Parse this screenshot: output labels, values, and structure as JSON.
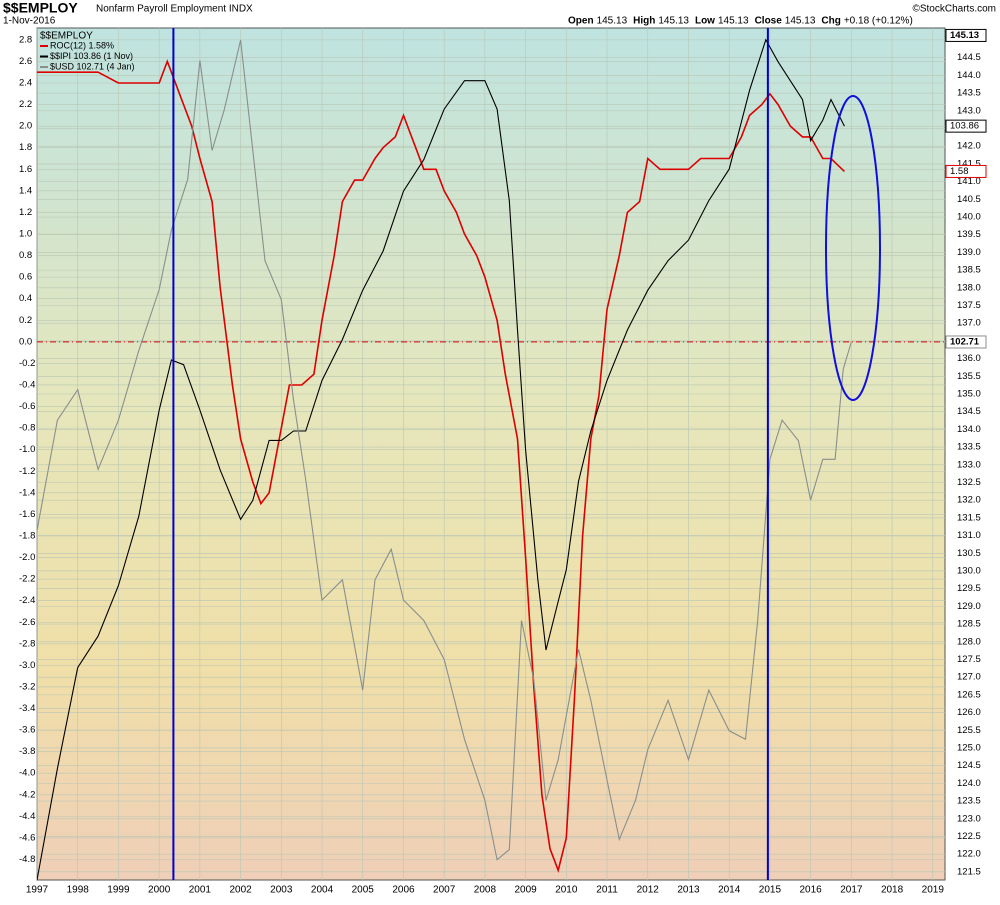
{
  "chart_data": {
    "type": "line",
    "title": "$$EMPLOY",
    "subtitle": "Nonfarm Payroll Employment INDX",
    "date": "1-Nov-2016",
    "credit": "©StockCharts.com",
    "stats": [
      {
        "name": "Open",
        "value": 145.13
      },
      {
        "name": "High",
        "value": 145.13
      },
      {
        "name": "Low",
        "value": 145.13
      },
      {
        "name": "Close",
        "value": 145.13
      },
      {
        "name": "Chg",
        "value": "+0.18 (+0.12%)"
      }
    ],
    "legend_title": "$$EMPLOY",
    "xlim": [
      1997,
      2019.3
    ],
    "xticks": [
      1997,
      1998,
      1999,
      2000,
      2001,
      2002,
      2003,
      2004,
      2005,
      2006,
      2007,
      2008,
      2009,
      2010,
      2011,
      2012,
      2013,
      2014,
      2015,
      2016,
      2017,
      2018,
      2019
    ],
    "ylim": [
      -4.99,
      2.91
    ],
    "yticks": [
      2.8,
      2.6,
      2.4,
      2.2,
      {
        "value": 2,
        "label": "2.0"
      },
      1.8,
      1.6,
      1.4,
      1.2,
      {
        "value": 1,
        "label": "1.0"
      },
      0.8,
      0.6,
      0.4,
      0.2,
      {
        "value": 0,
        "label": "0.0"
      },
      -0.2,
      -0.4,
      -0.6,
      -0.8,
      {
        "value": -1,
        "label": "-1.0"
      },
      -1.2,
      -1.4,
      -1.6,
      -1.8,
      {
        "value": -2,
        "label": "-2.0"
      },
      -2.2,
      -2.4,
      -2.6,
      -2.8,
      {
        "value": -3,
        "label": "-3.0"
      },
      -3.2,
      -3.4,
      -3.6,
      -3.8,
      {
        "value": -4,
        "label": "-4.0"
      },
      -4.2,
      -4.4,
      -4.6,
      -4.8
    ],
    "y2lim": [
      121.27,
      145.34
    ],
    "y2ticks": [
      121.5,
      {
        "value": 122,
        "label": "122.0"
      },
      122.5,
      {
        "value": 123,
        "label": "123.0"
      },
      123.5,
      {
        "value": 124,
        "label": "124.0"
      },
      124.5,
      {
        "value": 125,
        "label": "125.0"
      },
      125.5,
      {
        "value": 126,
        "label": "126.0"
      },
      126.5,
      {
        "value": 127,
        "label": "127.0"
      },
      127.5,
      {
        "value": 128,
        "label": "128.0"
      },
      128.5,
      {
        "value": 129,
        "label": "129.0"
      },
      129.5,
      {
        "value": 130,
        "label": "130.0"
      },
      130.5,
      {
        "value": 131,
        "label": "131.0"
      },
      131.5,
      {
        "value": 132,
        "label": "132.0"
      },
      132.5,
      {
        "value": 133,
        "label": "133.0"
      },
      133.5,
      {
        "value": 134,
        "label": "134.0"
      },
      134.5,
      {
        "value": 135,
        "label": "135.0"
      },
      135.5,
      {
        "value": 136,
        "label": "136.0"
      },
      136.5,
      {
        "value": 137,
        "label": "137.0"
      },
      137.5,
      {
        "value": 138,
        "label": "138.0"
      },
      138.5,
      {
        "value": 139,
        "label": "139.0"
      },
      139.5,
      {
        "value": 140,
        "label": "140.0"
      },
      140.5,
      {
        "value": 141,
        "label": "141.0"
      },
      141.5,
      {
        "value": 142,
        "label": "142.0"
      },
      142.5,
      {
        "value": 143,
        "label": "143.0"
      },
      143.5,
      {
        "value": 144,
        "label": "144.0"
      },
      144.5
    ],
    "grid": true,
    "zero_line": {
      "value": 0,
      "color": "#d00000"
    },
    "vlines": {
      "values": [
        2000.35,
        2014.95
      ],
      "color": "#0000cc"
    },
    "series": [
      {
        "name": "ROC(12) 1.58%",
        "color": "#dd0000",
        "x": [
          1997,
          1997.5,
          1998,
          1998.5,
          1999,
          1999.5,
          2000,
          2000.2,
          2000.5,
          2000.8,
          2001,
          2001.3,
          2001.5,
          2001.8,
          2002,
          2002.3,
          2002.5,
          2002.7,
          2003,
          2003.2,
          2003.5,
          2003.8,
          2004,
          2004.3,
          2004.5,
          2004.8,
          2005,
          2005.3,
          2005.5,
          2005.8,
          2006,
          2006.3,
          2006.5,
          2006.8,
          2007,
          2007.3,
          2007.5,
          2007.8,
          2008,
          2008.3,
          2008.5,
          2008.8,
          2009,
          2009.2,
          2009.4,
          2009.6,
          2009.8,
          2010,
          2010.2,
          2010.4,
          2010.6,
          2010.8,
          2011,
          2011.3,
          2011.5,
          2011.8,
          2012,
          2012.3,
          2012.5,
          2012.8,
          2013,
          2013.3,
          2013.5,
          2013.8,
          2014,
          2014.3,
          2014.5,
          2014.8,
          2015,
          2015.2,
          2015.5,
          2015.8,
          2016,
          2016.3,
          2016.5,
          2016.83
        ],
        "values": [
          2.5,
          2.5,
          2.5,
          2.5,
          2.4,
          2.4,
          2.4,
          2.6,
          2.3,
          2.0,
          1.7,
          1.3,
          0.5,
          -0.4,
          -0.9,
          -1.3,
          -1.5,
          -1.4,
          -0.8,
          -0.4,
          -0.4,
          -0.3,
          0.2,
          0.8,
          1.3,
          1.5,
          1.5,
          1.7,
          1.8,
          1.9,
          2.1,
          1.8,
          1.6,
          1.6,
          1.4,
          1.2,
          1.0,
          0.8,
          0.6,
          0.2,
          -0.3,
          -0.9,
          -2.0,
          -3.2,
          -4.2,
          -4.7,
          -4.9,
          -4.6,
          -3.3,
          -1.8,
          -0.9,
          -0.5,
          0.3,
          0.8,
          1.2,
          1.3,
          1.7,
          1.6,
          1.6,
          1.6,
          1.6,
          1.7,
          1.7,
          1.7,
          1.7,
          1.9,
          2.1,
          2.2,
          2.3,
          2.2,
          2.0,
          1.9,
          1.9,
          1.7,
          1.7,
          1.58
        ]
      },
      {
        "name": "$$IPI 103.86 (1 Nov)",
        "color": "#000000",
        "ylim": [
          79.97,
          106.97
        ],
        "x": [
          1997,
          1997.5,
          1998,
          1998.5,
          1999,
          1999.5,
          2000,
          2000.3,
          2000.6,
          2001,
          2001.5,
          2002,
          2002.3,
          2002.7,
          2003,
          2003.3,
          2003.6,
          2004,
          2004.5,
          2005,
          2005.5,
          2006,
          2006.5,
          2007,
          2007.5,
          2008,
          2008.3,
          2008.6,
          2008.8,
          2009,
          2009.3,
          2009.5,
          2009.8,
          2010,
          2010.3,
          2010.6,
          2011,
          2011.5,
          2012,
          2012.5,
          2013,
          2013.5,
          2014,
          2014.5,
          2014.9,
          2015.2,
          2015.5,
          2015.8,
          2016,
          2016.3,
          2016.5,
          2016.83
        ],
        "values": [
          79.97,
          83.5,
          86.7,
          87.7,
          89.3,
          91.5,
          94.86,
          96.45,
          96.3,
          94.86,
          92.96,
          91.4,
          92.0,
          93.9,
          93.9,
          94.2,
          94.2,
          95.8,
          97.1,
          98.66,
          99.9,
          101.8,
          102.8,
          104.4,
          105.3,
          105.3,
          104.4,
          101.5,
          97.4,
          93.6,
          89.5,
          87.26,
          88.8,
          89.8,
          92.6,
          94.2,
          95.8,
          97.4,
          98.66,
          99.6,
          100.25,
          101.5,
          102.5,
          105.0,
          106.6,
          105.9,
          105.3,
          104.7,
          103.4,
          104.05,
          104.7,
          103.86
        ]
      },
      {
        "name": "$USD 102.71 (4 Jan)",
        "color": "#8a8f8c",
        "ylim": [
          71.01,
          121.21
        ],
        "x": [
          1997,
          1997.5,
          1998,
          1998.5,
          1999,
          1999.5,
          2000,
          2000.3,
          2000.7,
          2001,
          2001.3,
          2001.6,
          2002,
          2002.3,
          2002.6,
          2003,
          2003.3,
          2003.6,
          2004,
          2004.5,
          2005,
          2005.3,
          2005.7,
          2006,
          2006.5,
          2007,
          2007.5,
          2008,
          2008.3,
          2008.6,
          2008.9,
          2009.2,
          2009.5,
          2009.8,
          2010.3,
          2010.6,
          2011,
          2011.3,
          2011.7,
          2012,
          2012.5,
          2013,
          2013.5,
          2014,
          2014.4,
          2014.7,
          2015,
          2015.3,
          2015.7,
          2016,
          2016.3,
          2016.6,
          2016.8,
          2017
        ],
        "values": [
          91.6,
          98.1,
          99.9,
          95.2,
          98.1,
          102.2,
          105.8,
          109.3,
          112.3,
          119.3,
          114.0,
          116.4,
          120.5,
          114.0,
          107.5,
          105.2,
          99.3,
          94.6,
          87.5,
          88.7,
          82.2,
          88.7,
          90.5,
          87.5,
          86.3,
          84.0,
          79.3,
          75.7,
          72.2,
          72.8,
          86.3,
          82.8,
          75.7,
          78.1,
          84.6,
          81.6,
          76.9,
          73.4,
          75.7,
          78.7,
          81.6,
          78.1,
          82.2,
          79.8,
          79.3,
          86.3,
          95.8,
          98.1,
          96.9,
          93.4,
          95.8,
          95.8,
          101.1,
          102.71
        ]
      }
    ]
  }
}
